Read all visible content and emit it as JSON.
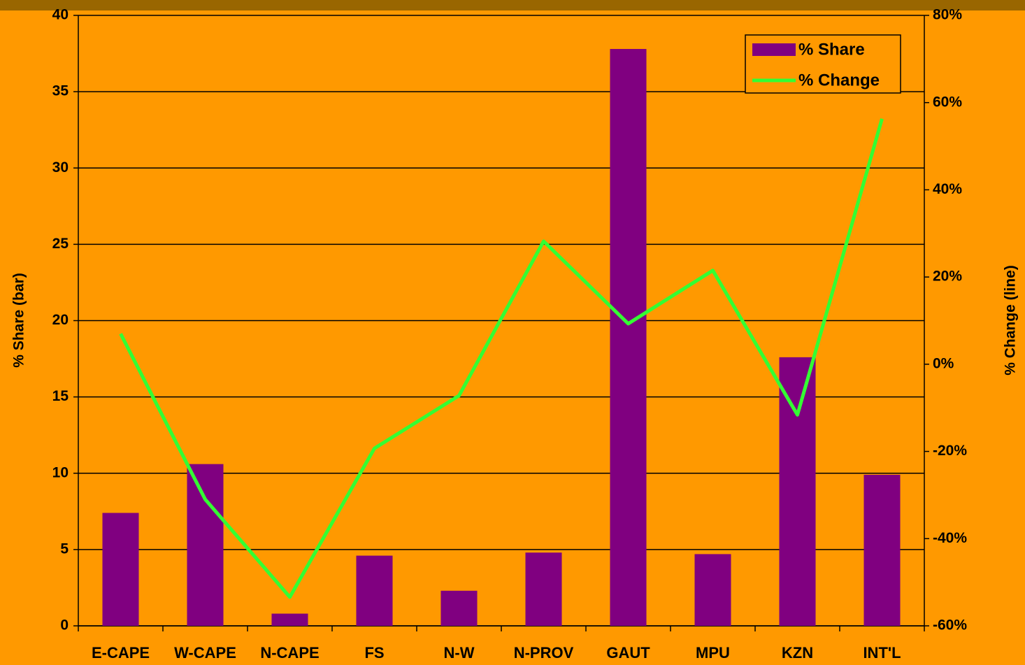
{
  "chart_data": {
    "type": "bar-line",
    "categories": [
      "E-CAPE",
      "W-CAPE",
      "N-CAPE",
      "FS",
      "N-W",
      "N-PROV",
      "GAUT",
      "MPU",
      "KZN",
      "INT'L"
    ],
    "series": [
      {
        "name": "% Share",
        "type": "bar",
        "color": "#800080",
        "values": [
          7.4,
          10.6,
          0.8,
          4.6,
          2.3,
          4.8,
          37.8,
          4.7,
          17.6,
          9.9
        ]
      },
      {
        "name": "% Change",
        "type": "line",
        "axis": "y2",
        "color": "#33FF33",
        "values": [
          7,
          -31,
          -53.4,
          -19.3,
          -7.2,
          28.2,
          9.3,
          21.5,
          -11.6,
          56.3
        ]
      }
    ],
    "ylabel": "% Share (bar)",
    "y2label": "% Change (line)",
    "ylim": [
      0,
      40
    ],
    "yticks": [
      0,
      5,
      10,
      15,
      20,
      25,
      30,
      35,
      40
    ],
    "y2lim": [
      -60,
      80
    ],
    "y2ticks": [
      {
        "value": -60,
        "label": "-60%"
      },
      {
        "value": -40,
        "label": "-40%"
      },
      {
        "value": -20,
        "label": "-20%"
      },
      {
        "value": 0,
        "label": "0%"
      },
      {
        "value": 20,
        "label": "20%"
      },
      {
        "value": 40,
        "label": "40%"
      },
      {
        "value": 60,
        "label": "60%"
      },
      {
        "value": 80,
        "label": "80%"
      }
    ],
    "grid": true,
    "legend": "upper right"
  }
}
